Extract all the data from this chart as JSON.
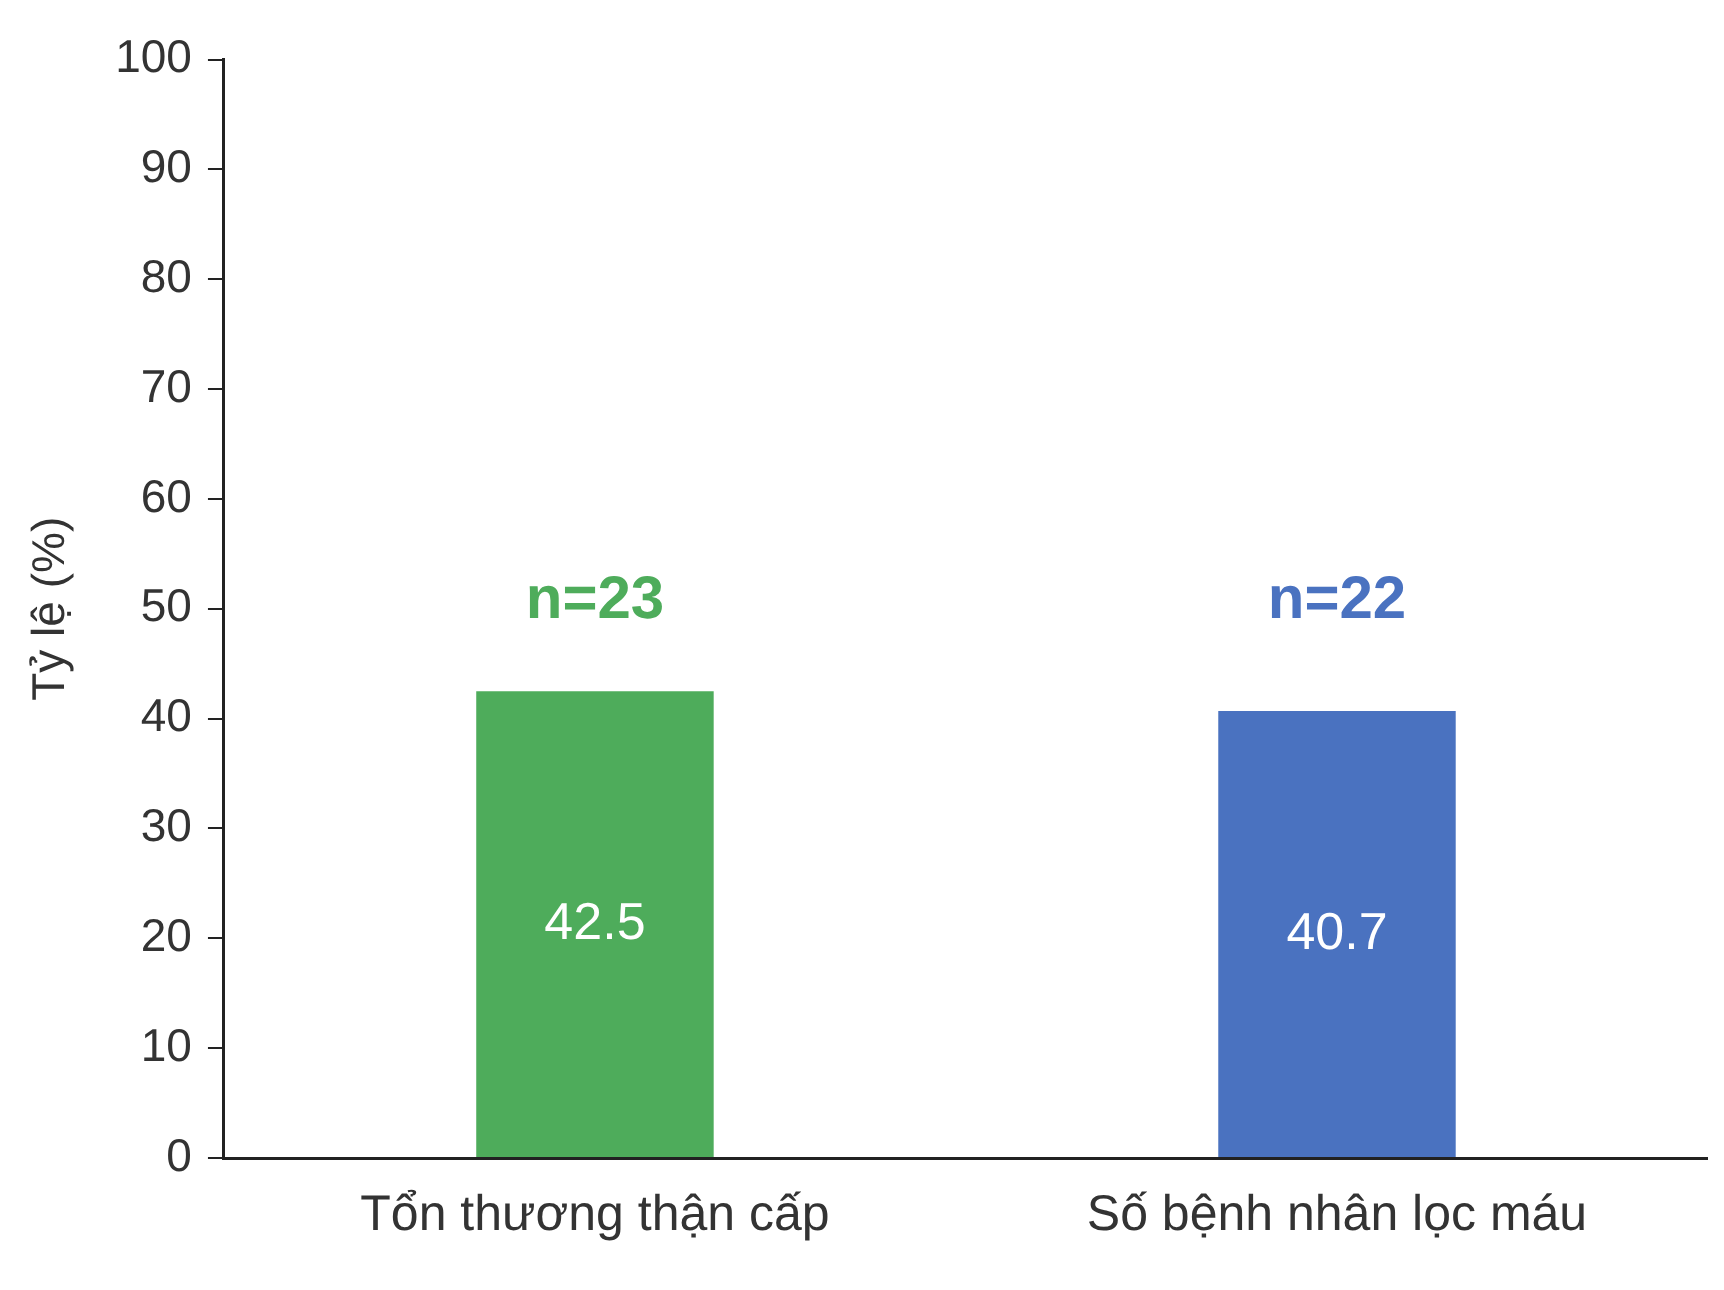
{
  "chart_data": {
    "type": "bar",
    "ylabel": "Tỷ lệ (%)",
    "categories": [
      "Tổn thương thận cấp",
      "Số bệnh nhân lọc máu"
    ],
    "values": [
      42.5,
      40.7
    ],
    "colors": [
      "#4eac5b",
      "#4a72c0"
    ],
    "ylim": [
      0,
      100
    ],
    "yticks": [
      0,
      10,
      20,
      30,
      40,
      50,
      60,
      70,
      80,
      90,
      100
    ],
    "data_labels": true,
    "grid": false,
    "legend": false,
    "annotations": [
      "n=23",
      "n=22"
    ]
  }
}
